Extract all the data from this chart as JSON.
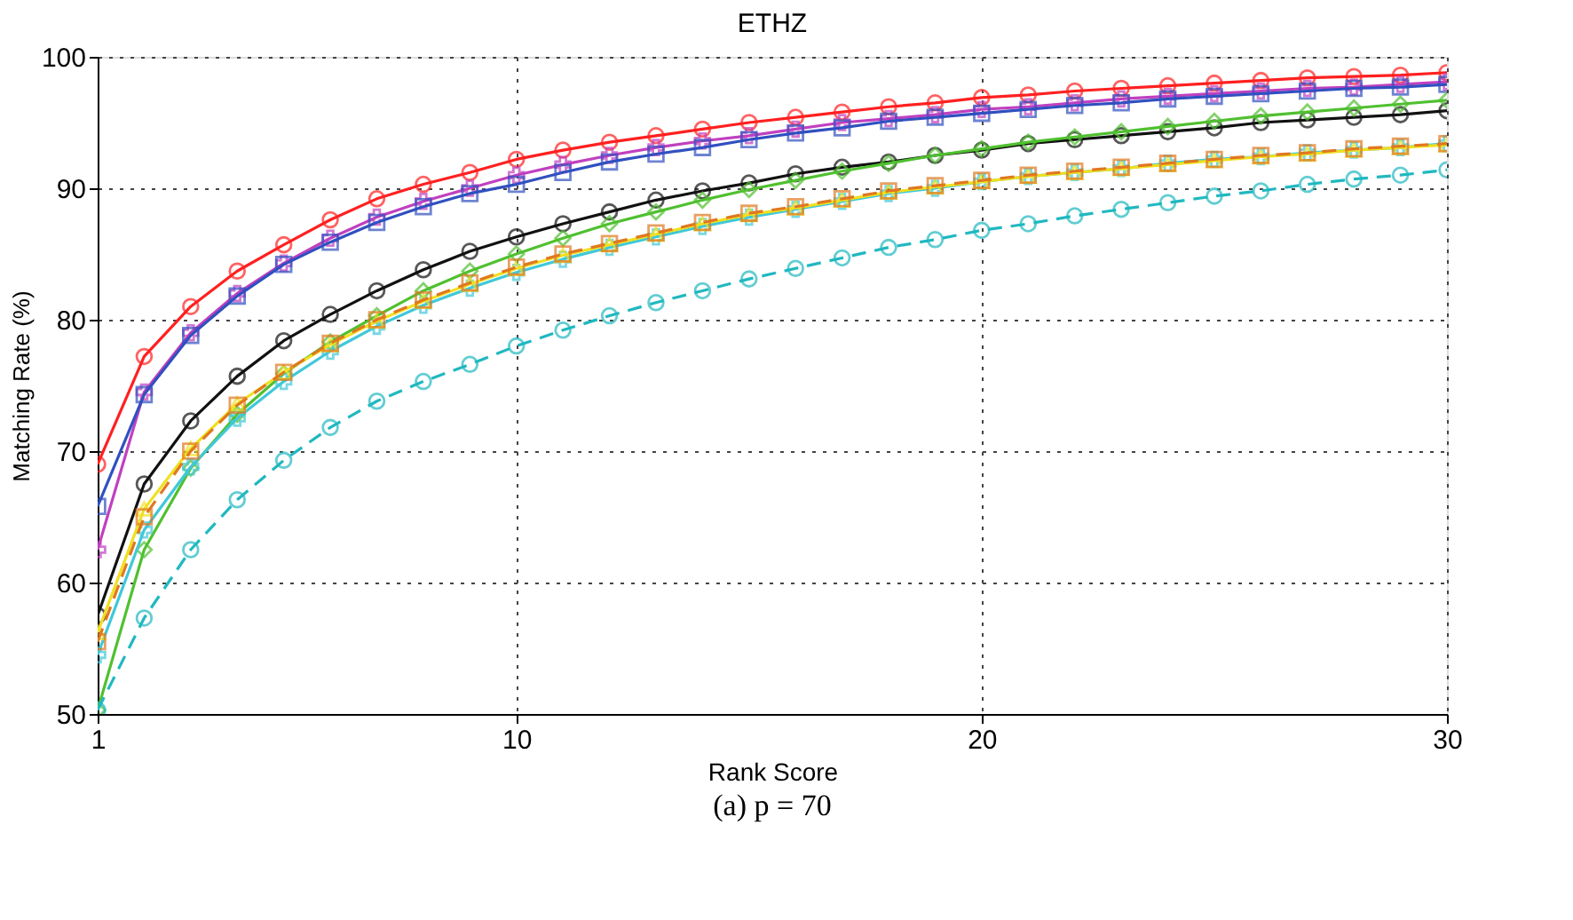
{
  "chart_data": {
    "type": "line",
    "title": "ETHZ",
    "xlabel": "Rank Score",
    "ylabel": "Matching Rate (%)",
    "annotations": [
      "(a) p = 70"
    ],
    "x": [
      1,
      2,
      3,
      4,
      5,
      6,
      7,
      8,
      9,
      10,
      11,
      12,
      13,
      14,
      15,
      16,
      17,
      18,
      19,
      20,
      21,
      22,
      23,
      24,
      25,
      26,
      27,
      28,
      29,
      30
    ],
    "xlim": [
      1,
      30
    ],
    "xticks": [
      1,
      10,
      20,
      30
    ],
    "ylim": [
      50,
      100
    ],
    "yticks": [
      50,
      60,
      70,
      80,
      90,
      100
    ],
    "grid": true,
    "line_style": "solid",
    "series": [
      {
        "color": "#ff2020",
        "marker": "circle",
        "values": [
          69,
          77.2,
          81,
          83.7,
          85.7,
          87.6,
          89.2,
          90.3,
          91.2,
          92.2,
          92.9,
          93.5,
          94,
          94.5,
          95,
          95.4,
          95.8,
          96.2,
          96.5,
          96.9,
          97.1,
          97.4,
          97.6,
          97.8,
          98,
          98.2,
          98.4,
          98.5,
          98.6,
          98.8
        ]
      },
      {
        "color": "#c040c0",
        "marker": "cross",
        "values": [
          62.5,
          74.5,
          79,
          82,
          84.3,
          86.2,
          87.8,
          89,
          90,
          91,
          91.8,
          92.5,
          93.1,
          93.6,
          94,
          94.5,
          95,
          95.3,
          95.6,
          96,
          96.2,
          96.5,
          96.8,
          97,
          97.2,
          97.4,
          97.6,
          97.7,
          97.9,
          98.1
        ]
      },
      {
        "color": "#3050c0",
        "marker": "square",
        "values": [
          65.8,
          74.3,
          78.8,
          81.8,
          84.2,
          85.9,
          87.4,
          88.6,
          89.6,
          90.3,
          91.2,
          92,
          92.6,
          93.1,
          93.7,
          94.2,
          94.6,
          95.1,
          95.4,
          95.7,
          96,
          96.3,
          96.5,
          96.8,
          97,
          97.2,
          97.4,
          97.6,
          97.7,
          97.9
        ]
      },
      {
        "color": "#111111",
        "marker": "circle",
        "values": [
          57.5,
          67.5,
          72.3,
          75.7,
          78.4,
          80.4,
          82.2,
          83.8,
          85.2,
          86.3,
          87.3,
          88.2,
          89.1,
          89.8,
          90.4,
          91.1,
          91.6,
          92,
          92.5,
          92.9,
          93.4,
          93.7,
          94,
          94.3,
          94.6,
          95,
          95.2,
          95.4,
          95.6,
          95.9
        ]
      },
      {
        "color": "#50c030",
        "marker": "diamond",
        "values": [
          50.3,
          62.5,
          68.7,
          72.8,
          75.9,
          78.3,
          80.3,
          82.2,
          83.7,
          85,
          86.2,
          87.3,
          88.2,
          89.1,
          89.9,
          90.6,
          91.3,
          91.9,
          92.5,
          93,
          93.5,
          93.9,
          94.3,
          94.7,
          95.1,
          95.5,
          95.8,
          96.1,
          96.4,
          96.7
        ]
      },
      {
        "color": "#40c8d8",
        "marker": "cross",
        "values": [
          54.5,
          64,
          68.8,
          72.5,
          75.3,
          77.6,
          79.5,
          81.1,
          82.4,
          83.6,
          84.6,
          85.5,
          86.3,
          87.1,
          87.8,
          88.4,
          89,
          89.6,
          90,
          90.5,
          90.9,
          91.2,
          91.5,
          91.9,
          92.2,
          92.4,
          92.7,
          92.9,
          93.1,
          93.4
        ]
      },
      {
        "color": "#f0e020",
        "marker": "triangle",
        "values": [
          56.2,
          65.6,
          70.2,
          73.6,
          76,
          78.1,
          79.9,
          81.4,
          82.7,
          83.9,
          84.9,
          85.7,
          86.5,
          87.3,
          88,
          88.5,
          89.1,
          89.7,
          90.1,
          90.5,
          90.9,
          91.2,
          91.5,
          91.8,
          92.1,
          92.4,
          92.6,
          92.9,
          93.1,
          93.3
        ]
      },
      {
        "color": "#e07820",
        "marker": "square",
        "line_style": "dashed",
        "values": [
          55.5,
          65,
          70,
          73.5,
          76,
          78.2,
          80,
          81.5,
          82.8,
          84,
          85,
          85.8,
          86.6,
          87.4,
          88.1,
          88.6,
          89.2,
          89.8,
          90.2,
          90.6,
          91,
          91.3,
          91.6,
          91.9,
          92.2,
          92.5,
          92.7,
          93,
          93.2,
          93.4
        ]
      },
      {
        "color": "#20b8c0",
        "marker": "circle",
        "line_style": "dashed",
        "values": [
          50.3,
          57.3,
          62.5,
          66.3,
          69.3,
          71.8,
          73.8,
          75.3,
          76.6,
          78,
          79.2,
          80.3,
          81.3,
          82.2,
          83.1,
          83.9,
          84.7,
          85.5,
          86.1,
          86.8,
          87.3,
          87.9,
          88.4,
          88.9,
          89.4,
          89.8,
          90.3,
          90.7,
          91,
          91.4
        ]
      }
    ]
  }
}
